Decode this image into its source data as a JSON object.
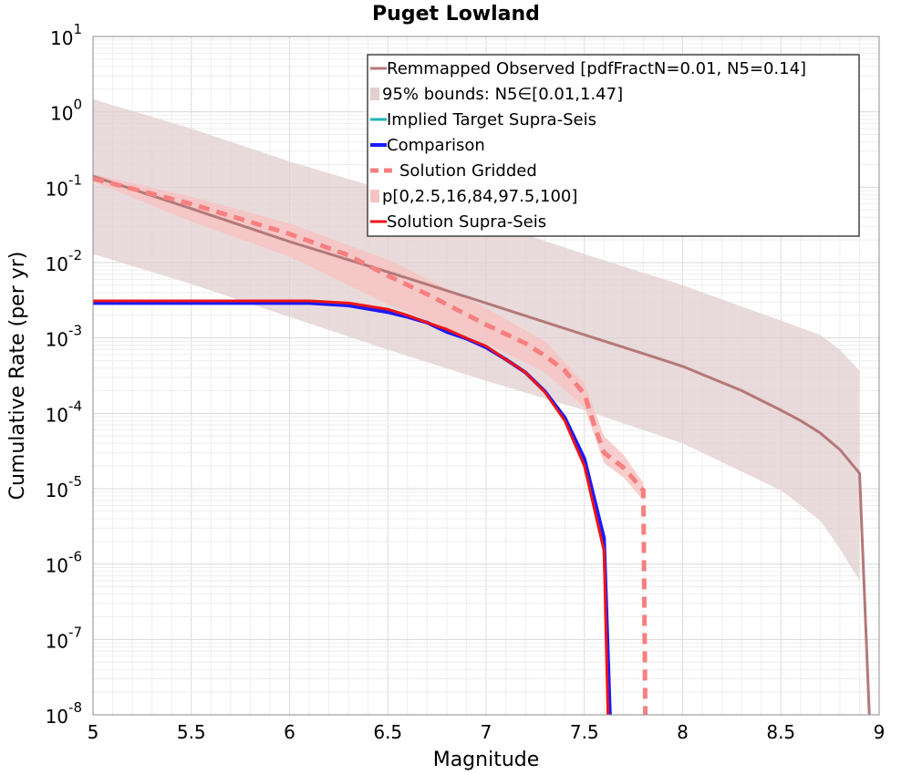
{
  "chart_data": {
    "type": "line",
    "title": "Puget Lowland",
    "xlabel": "Magnitude",
    "ylabel": "Cumulative Rate (per yr)",
    "xlim": [
      5,
      9
    ],
    "ylim": [
      1e-08,
      10
    ],
    "yscale": "log",
    "grid": true,
    "legend_position": "top-right",
    "x_ticks": [
      "5",
      "5.5",
      "6",
      "6.5",
      "7",
      "7.5",
      "8",
      "8.5",
      "9"
    ],
    "y_ticks": [
      {
        "base": "10",
        "exp": "-8",
        "value": 1e-08
      },
      {
        "base": "10",
        "exp": "-7",
        "value": 1e-07
      },
      {
        "base": "10",
        "exp": "-6",
        "value": 1e-06
      },
      {
        "base": "10",
        "exp": "-5",
        "value": 1e-05
      },
      {
        "base": "10",
        "exp": "-4",
        "value": 0.0001
      },
      {
        "base": "10",
        "exp": "-3",
        "value": 0.001
      },
      {
        "base": "10",
        "exp": "-2",
        "value": 0.01
      },
      {
        "base": "10",
        "exp": "-1",
        "value": 0.1
      },
      {
        "base": "10",
        "exp": "0",
        "value": 1
      },
      {
        "base": "10",
        "exp": "1",
        "value": 10
      }
    ],
    "series": [
      {
        "name": "Remmapped Observed [pdfFractN=0.01, N5=0.14]",
        "color": "#b47878",
        "style": "solid",
        "x": [
          5.0,
          5.5,
          6.0,
          6.5,
          7.0,
          7.5,
          7.8,
          8.0,
          8.3,
          8.5,
          8.6,
          8.7,
          8.8,
          8.9,
          8.95
        ],
        "y": [
          0.14,
          0.052,
          0.019,
          0.0075,
          0.0029,
          0.0011,
          0.00062,
          0.00042,
          0.0002,
          0.00011,
          8e-05,
          5.5e-05,
          3.3e-05,
          1.6e-05,
          1e-08
        ]
      },
      {
        "name": "95% bounds: N5∈[0.01,1.47]",
        "color": "#e2cfcf",
        "style": "band",
        "x": [
          5.0,
          5.5,
          6.0,
          6.5,
          7.0,
          7.5,
          8.0,
          8.5,
          8.7,
          8.8,
          8.9
        ],
        "upper": [
          1.47,
          0.6,
          0.22,
          0.09,
          0.035,
          0.013,
          0.005,
          0.0017,
          0.0011,
          0.0007,
          0.00037
        ],
        "lower": [
          0.013,
          0.0052,
          0.0019,
          0.0007,
          0.00027,
          0.00011,
          4e-05,
          9.5e-06,
          3.8e-06,
          1.6e-06,
          6e-07
        ]
      },
      {
        "name": "Implied Target Supra-Seis",
        "color": "#1fb3b3",
        "style": "solid",
        "x": [],
        "y": []
      },
      {
        "name": "Comparison",
        "color": "#1a1aff",
        "style": "solid",
        "x": [
          5.0,
          6.1,
          6.3,
          6.5,
          6.6,
          6.7,
          6.8,
          6.9,
          7.0,
          7.1,
          7.2,
          7.3,
          7.4,
          7.5,
          7.6,
          7.63
        ],
        "y": [
          0.0029,
          0.0029,
          0.0027,
          0.0022,
          0.0019,
          0.0016,
          0.0012,
          0.00098,
          0.00075,
          0.00052,
          0.00035,
          0.000195,
          8.8e-05,
          2.5e-05,
          2.2e-06,
          1e-08
        ]
      },
      {
        "name": "Solution Gridded",
        "color": "#f77f7f",
        "style": "dashed",
        "x": [
          5.0,
          5.5,
          6.0,
          6.3,
          6.5,
          6.7,
          7.0,
          7.2,
          7.3,
          7.4,
          7.5,
          7.55,
          7.6,
          7.7,
          7.8,
          7.81
        ],
        "y": [
          0.13,
          0.06,
          0.024,
          0.0125,
          0.0067,
          0.0038,
          0.0015,
          0.00085,
          0.00058,
          0.00037,
          0.00018,
          7e-05,
          3e-05,
          1.9e-05,
          9.5e-06,
          1e-08
        ]
      },
      {
        "name": "p[0,2.5,16,84,97.5,100]",
        "color": "#f7c2c2",
        "style": "band",
        "x": [
          5.0,
          5.5,
          6.0,
          6.5,
          7.0,
          7.3,
          7.5,
          7.6,
          7.7,
          7.8
        ],
        "upper": [
          0.15,
          0.075,
          0.033,
          0.011,
          0.0025,
          0.0009,
          0.00025,
          5e-05,
          2.8e-05,
          1.2e-05
        ],
        "lower": [
          0.12,
          0.035,
          0.012,
          0.0028,
          0.00085,
          0.00035,
          0.00012,
          2.2e-05,
          1.4e-05,
          7e-06
        ]
      },
      {
        "name": "Solution Supra-Seis",
        "color": "#f01414",
        "style": "solid",
        "x": [
          5.0,
          6.1,
          6.3,
          6.5,
          6.6,
          6.7,
          6.8,
          6.9,
          7.0,
          7.1,
          7.2,
          7.3,
          7.4,
          7.5,
          7.6,
          7.62
        ],
        "y": [
          0.0031,
          0.0031,
          0.0029,
          0.0024,
          0.002,
          0.0016,
          0.0013,
          0.001,
          0.00078,
          0.00052,
          0.00035,
          0.00019,
          8e-05,
          2e-05,
          1.5e-06,
          1e-08
        ]
      }
    ]
  }
}
